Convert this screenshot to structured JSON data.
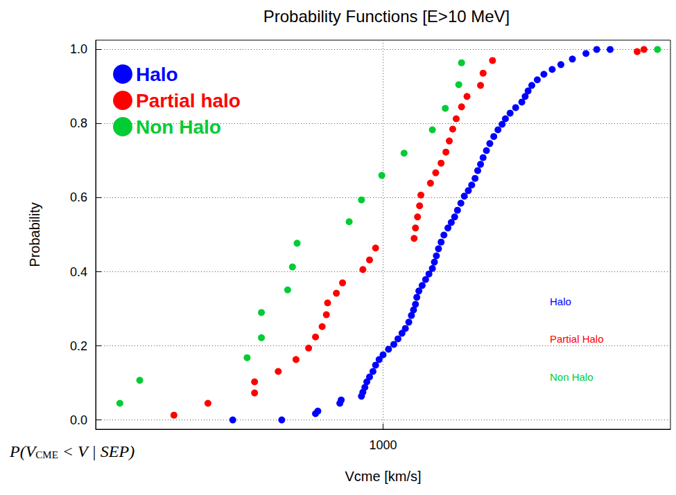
{
  "chart_data": {
    "type": "scatter",
    "title": "Probability Functions [E>10 MeV]",
    "x_label": "Vcme [km/s]",
    "y_label": "Probability",
    "log": "x",
    "grid": true,
    "legend": "upper left",
    "marker": "circle",
    "xlim": [
      200,
      5000
    ],
    "xticks": [
      1000
    ],
    "ylim": [
      -0.025,
      1.025
    ],
    "yticks": [
      {
        "value": 0,
        "label": "0.0"
      },
      {
        "value": 0.2,
        "label": "0.2"
      },
      {
        "value": 0.4,
        "label": "0.4"
      },
      {
        "value": 0.6,
        "label": "0.6"
      },
      {
        "value": 0.8,
        "label": "0.8"
      },
      {
        "value": 1,
        "label": "1.0"
      }
    ],
    "series": [
      {
        "name": "Halo",
        "color": "#0000ff",
        "x": [
          431,
          567,
          685,
          694,
          785,
          791,
          886,
          893,
          903,
          913,
          927,
          945,
          959,
          978,
          1000,
          1031,
          1062,
          1087,
          1112,
          1133,
          1155,
          1172,
          1186,
          1199,
          1208,
          1222,
          1245,
          1269,
          1293,
          1318,
          1333,
          1348,
          1364,
          1384,
          1406,
          1438,
          1465,
          1493,
          1517,
          1546,
          1576,
          1612,
          1643,
          1674,
          1699,
          1726,
          1751,
          1784,
          1818,
          1859,
          1903,
          1948,
          1984,
          2037,
          2101,
          2175,
          2216,
          2253,
          2300,
          2372,
          2461,
          2578,
          2707,
          2887,
          3115,
          3309,
          3567
        ],
        "values": [
          0.0,
          0.0,
          0.017,
          0.024,
          0.045,
          0.054,
          0.064,
          0.075,
          0.088,
          0.103,
          0.116,
          0.131,
          0.148,
          0.163,
          0.176,
          0.191,
          0.204,
          0.219,
          0.234,
          0.247,
          0.264,
          0.282,
          0.297,
          0.312,
          0.331,
          0.348,
          0.363,
          0.379,
          0.394,
          0.409,
          0.426,
          0.443,
          0.462,
          0.48,
          0.499,
          0.518,
          0.533,
          0.548,
          0.566,
          0.585,
          0.604,
          0.619,
          0.634,
          0.652,
          0.673,
          0.69,
          0.708,
          0.727,
          0.746,
          0.765,
          0.783,
          0.798,
          0.813,
          0.828,
          0.843,
          0.858,
          0.873,
          0.888,
          0.903,
          0.918,
          0.933,
          0.946,
          0.959,
          0.974,
          0.989,
          1.0,
          1.0
        ]
      },
      {
        "name": "Partial halo",
        "color": "#ff0000",
        "x": [
          310,
          375,
          487,
          487,
          556,
          614,
          659,
          685,
          711,
          728,
          733,
          770,
          797,
          893,
          927,
          959,
          1190,
          1199,
          1213,
          1227,
          1236,
          1304,
          1343,
          1384,
          1422,
          1449,
          1477,
          1506,
          1552,
          1600,
          1726,
          1751,
          1846,
          4150,
          4310
        ],
        "values": [
          0.013,
          0.045,
          0.073,
          0.103,
          0.131,
          0.163,
          0.194,
          0.224,
          0.252,
          0.284,
          0.316,
          0.342,
          0.37,
          0.406,
          0.432,
          0.464,
          0.49,
          0.518,
          0.548,
          0.578,
          0.607,
          0.639,
          0.667,
          0.693,
          0.723,
          0.753,
          0.785,
          0.813,
          0.845,
          0.873,
          0.903,
          0.936,
          0.97,
          0.994,
          1.0
        ]
      },
      {
        "name": "Non Halo",
        "color": "#00cc33",
        "x": [
          229,
          256,
          467,
          506,
          506,
          586,
          602,
          618,
          827,
          886,
          993,
          1125,
          1318,
          1417,
          1528,
          1552,
          4650
        ],
        "values": [
          0.045,
          0.107,
          0.168,
          0.222,
          0.29,
          0.351,
          0.413,
          0.477,
          0.535,
          0.594,
          0.66,
          0.72,
          0.783,
          0.841,
          0.905,
          0.964,
          1.0
        ]
      }
    ],
    "annotations": [
      {
        "text": "Halo",
        "color": "#0000ff"
      },
      {
        "text": "Partial Halo",
        "color": "#ff0000"
      },
      {
        "text": "Non Halo",
        "color": "#00cc33"
      }
    ],
    "formula": [
      "P(V",
      "CME",
      " < V | SEP)"
    ]
  }
}
